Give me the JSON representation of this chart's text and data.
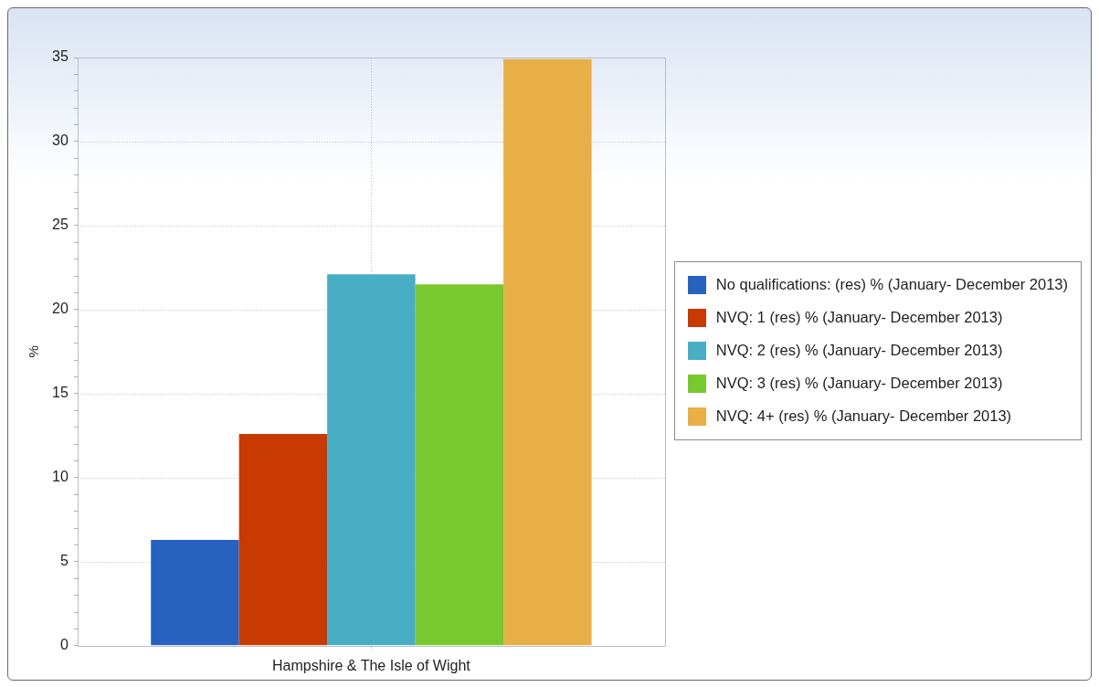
{
  "chart_data": {
    "type": "bar",
    "ylabel": "%",
    "categories": [
      "Hampshire & The Isle of Wight"
    ],
    "series": [
      {
        "name": "No qualifications: (res) % (January- December 2013)",
        "color": "#2762c1",
        "values": [
          6.3
        ]
      },
      {
        "name": "NVQ: 1 (res) % (January- December 2013)",
        "color": "#c93a02",
        "values": [
          12.6
        ]
      },
      {
        "name": "NVQ: 2 (res) % (January- December 2013)",
        "color": "#47aec4",
        "values": [
          22.1
        ]
      },
      {
        "name": "NVQ: 3 (res) % (January- December 2013)",
        "color": "#78c830",
        "values": [
          21.5
        ]
      },
      {
        "name": "NVQ: 4+ (res) % (January- December 2013)",
        "color": "#e8af46",
        "values": [
          34.9
        ]
      }
    ],
    "ylim": [
      0,
      35
    ],
    "yticks": [
      0,
      {
        "value": 1,
        "label": null
      },
      {
        "value": 2,
        "label": null
      },
      {
        "value": 3,
        "label": null
      },
      {
        "value": 4,
        "label": null
      },
      5,
      {
        "value": 6,
        "label": null
      },
      {
        "value": 7,
        "label": null
      },
      {
        "value": 8,
        "label": null
      },
      {
        "value": 9,
        "label": null
      },
      10,
      {
        "value": 11,
        "label": null
      },
      {
        "value": 12,
        "label": null
      },
      {
        "value": 13,
        "label": null
      },
      {
        "value": 14,
        "label": null
      },
      15,
      {
        "value": 16,
        "label": null
      },
      {
        "value": 17,
        "label": null
      },
      {
        "value": 18,
        "label": null
      },
      {
        "value": 19,
        "label": null
      },
      20,
      {
        "value": 21,
        "label": null
      },
      {
        "value": 22,
        "label": null
      },
      {
        "value": 23,
        "label": null
      },
      {
        "value": 24,
        "label": null
      },
      25,
      {
        "value": 26,
        "label": null
      },
      {
        "value": 27,
        "label": null
      },
      {
        "value": 28,
        "label": null
      },
      {
        "value": 29,
        "label": null
      },
      30,
      {
        "value": 31,
        "label": null
      },
      {
        "value": 32,
        "label": null
      },
      {
        "value": 33,
        "label": null
      },
      {
        "value": 34,
        "label": null
      },
      35
    ],
    "grid": true,
    "legend": "right"
  }
}
